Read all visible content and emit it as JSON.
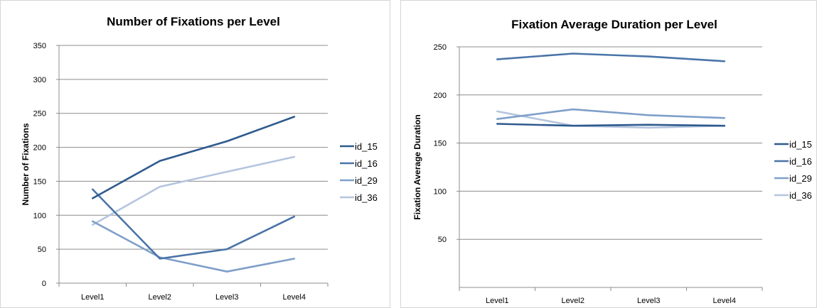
{
  "chart_data": [
    {
      "type": "line",
      "title": "Number of Fixations per Level",
      "xlabel": "",
      "ylabel": "Number of Fixations",
      "categories": [
        "Level1",
        "Level2",
        "Level3",
        "Level4"
      ],
      "ylim": [
        0,
        350
      ],
      "yticks": [
        0,
        50,
        100,
        150,
        200,
        250,
        300,
        350
      ],
      "grid": true,
      "legend_position": "right",
      "series": [
        {
          "name": "id_15",
          "color": "#2e5a8e",
          "values": [
            125,
            180,
            209,
            245
          ]
        },
        {
          "name": "id_16",
          "color": "#4a74a8",
          "values": [
            138,
            36,
            50,
            98
          ]
        },
        {
          "name": "id_29",
          "color": "#7f9fc9",
          "values": [
            91,
            38,
            17,
            36
          ]
        },
        {
          "name": "id_36",
          "color": "#b4c5de",
          "values": [
            86,
            142,
            164,
            186
          ]
        }
      ]
    },
    {
      "type": "line",
      "title": "Fixation Average Duration per Level",
      "xlabel": "",
      "ylabel": "Fixation Average Duration",
      "categories": [
        "Level1",
        "Level2",
        "Level3",
        "Level4"
      ],
      "ylim": [
        0,
        250
      ],
      "yticks": [
        50,
        100,
        150,
        200,
        250
      ],
      "grid": true,
      "legend_position": "right",
      "series": [
        {
          "name": "id_15",
          "color": "#2e5a8e",
          "values": [
            170,
            168,
            169,
            168
          ]
        },
        {
          "name": "id_16",
          "color": "#4a74a8",
          "values": [
            237,
            243,
            240,
            235
          ]
        },
        {
          "name": "id_29",
          "color": "#7f9fc9",
          "values": [
            175,
            185,
            179,
            176
          ]
        },
        {
          "name": "id_36",
          "color": "#b4c5de",
          "values": [
            183,
            168,
            166,
            168
          ]
        }
      ]
    }
  ]
}
